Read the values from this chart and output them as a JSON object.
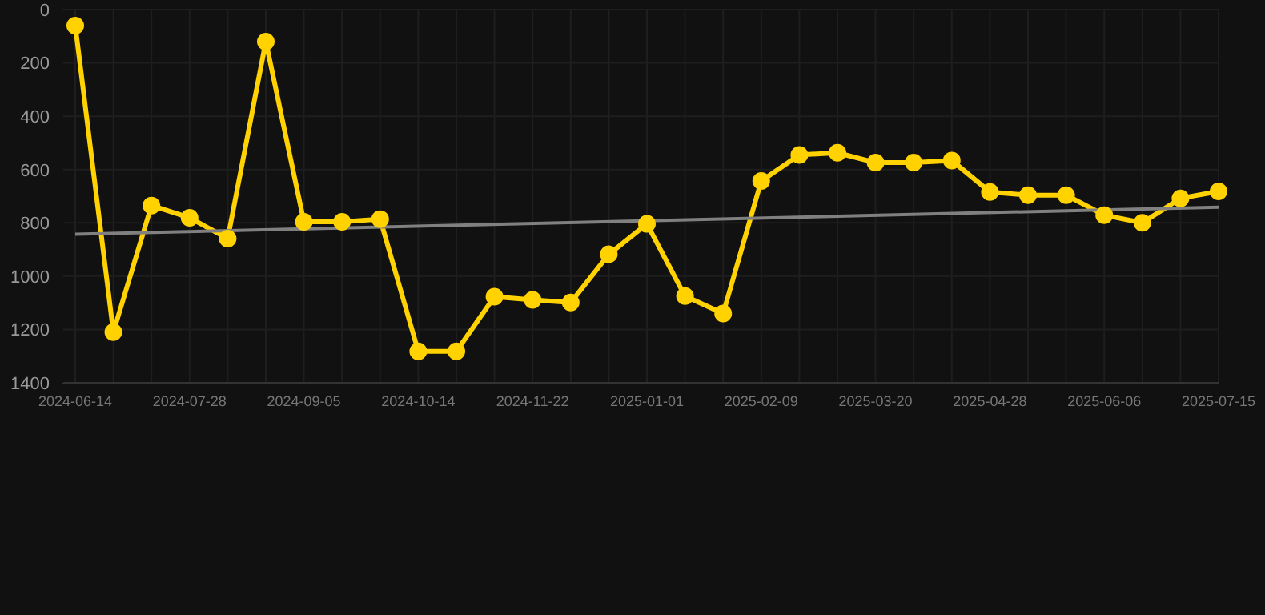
{
  "chart_data": {
    "type": "line",
    "categories": [
      "2024-06-14",
      null,
      null,
      "2024-07-28",
      null,
      null,
      "2024-09-05",
      null,
      null,
      "2024-10-14",
      null,
      null,
      "2024-11-22",
      null,
      null,
      "2025-01-01",
      null,
      null,
      "2025-02-09",
      null,
      null,
      "2025-03-20",
      null,
      null,
      "2025-04-28",
      null,
      null,
      "2025-06-06",
      null,
      null,
      "2025-07-15"
    ],
    "series": [
      {
        "color": "#ffd200",
        "marker": "circle",
        "values": [
          60,
          1210,
          735,
          781,
          859,
          120,
          796,
          796,
          786,
          1282,
          1282,
          1077,
          1089,
          1099,
          918,
          804,
          1075,
          1140,
          643,
          545,
          537,
          574,
          574,
          566,
          684,
          696,
          696,
          771,
          800,
          708,
          682
        ]
      },
      {
        "color": "#808080",
        "marker": "none",
        "values": [
          843,
          null,
          null,
          null,
          null,
          null,
          null,
          null,
          null,
          null,
          null,
          null,
          null,
          null,
          null,
          null,
          null,
          null,
          null,
          null,
          null,
          null,
          null,
          null,
          null,
          null,
          null,
          null,
          null,
          null,
          741
        ]
      }
    ],
    "ylim": [
      1400,
      0
    ],
    "yticks": [
      0,
      200,
      400,
      600,
      800,
      1000,
      1200,
      1400
    ],
    "grid": true
  }
}
